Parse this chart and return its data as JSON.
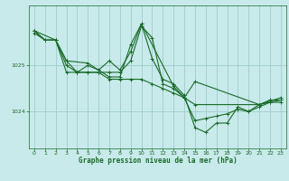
{
  "background_color": "#c8eaea",
  "plot_bg_color": "#c8eaea",
  "grid_color": "#a0cccc",
  "line_color": "#1a6b2a",
  "title": "Graphe pression niveau de la mer (hPa)",
  "xlim": [
    -0.5,
    23.5
  ],
  "ylim": [
    1023.2,
    1026.3
  ],
  "yticks": [
    1024,
    1025
  ],
  "xticks": [
    0,
    1,
    2,
    3,
    4,
    5,
    6,
    7,
    8,
    9,
    10,
    11,
    12,
    13,
    14,
    15,
    16,
    17,
    18,
    19,
    20,
    21,
    22,
    23
  ],
  "series": [
    {
      "x": [
        0,
        1,
        2,
        3,
        4,
        5,
        6,
        7,
        8,
        9,
        10,
        11,
        12,
        13,
        14,
        15,
        16,
        17,
        18,
        19,
        20,
        21,
        22,
        23
      ],
      "y": [
        1025.7,
        1025.55,
        1025.55,
        1024.85,
        1024.85,
        1025.0,
        1024.9,
        1025.1,
        1024.9,
        1025.3,
        1025.9,
        1025.15,
        1024.7,
        1024.6,
        1024.35,
        1023.65,
        1023.55,
        1023.75,
        1023.75,
        1024.1,
        1024.0,
        1024.15,
        1024.25,
        1024.25
      ]
    },
    {
      "x": [
        0,
        1,
        2,
        3,
        4,
        5,
        6,
        7,
        8,
        9,
        10,
        11,
        12,
        13,
        14,
        15,
        16,
        17,
        18,
        19,
        20,
        21,
        22,
        23
      ],
      "y": [
        1025.75,
        1025.55,
        1025.55,
        1025.0,
        1024.85,
        1024.85,
        1024.85,
        1024.85,
        1024.85,
        1025.1,
        1025.85,
        1025.6,
        1024.6,
        1024.5,
        1024.3,
        1023.8,
        1023.85,
        1023.9,
        1023.95,
        1024.05,
        1024.0,
        1024.1,
        1024.2,
        1024.2
      ]
    },
    {
      "x": [
        0,
        2,
        3,
        5,
        7,
        8,
        9,
        10,
        13,
        14,
        15,
        21,
        23
      ],
      "y": [
        1025.75,
        1025.55,
        1025.1,
        1025.05,
        1024.75,
        1024.75,
        1025.45,
        1025.9,
        1024.55,
        1024.3,
        1024.65,
        1024.15,
        1024.3
      ]
    },
    {
      "x": [
        0,
        1,
        2,
        3,
        4,
        5,
        6,
        7,
        8,
        9,
        10,
        11,
        12,
        13,
        14,
        15,
        21,
        22,
        23
      ],
      "y": [
        1025.75,
        1025.55,
        1025.55,
        1025.1,
        1024.85,
        1024.85,
        1024.85,
        1024.7,
        1024.7,
        1024.7,
        1024.7,
        1024.6,
        1024.5,
        1024.4,
        1024.3,
        1024.15,
        1024.15,
        1024.2,
        1024.25
      ]
    }
  ]
}
